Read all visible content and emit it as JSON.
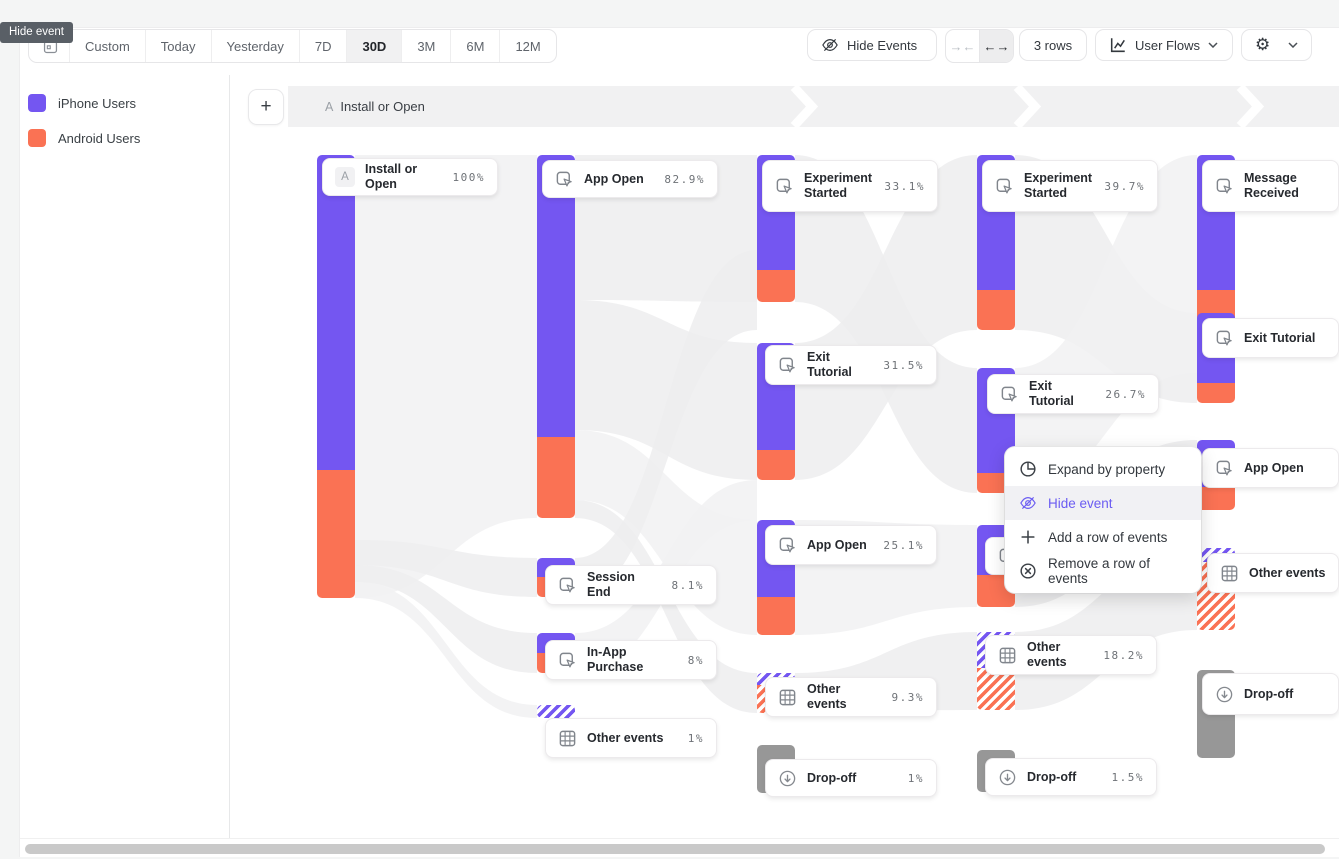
{
  "tooltip": {
    "label": "Hide event"
  },
  "toolbar": {
    "date_ranges": [
      "Custom",
      "Today",
      "Yesterday",
      "7D",
      "30D",
      "3M",
      "6M",
      "12M"
    ],
    "selected_range": "30D",
    "hide_events_label": "Hide Events",
    "collapse_glyph": "→←",
    "expand_glyph": "←→",
    "rows_label": "3 rows",
    "view_label": "User Flows",
    "gear_glyph": "⚙"
  },
  "legend": {
    "items": [
      {
        "label": "iPhone Users",
        "color": "#7456f1"
      },
      {
        "label": "Android Users",
        "color": "#fa7254"
      }
    ]
  },
  "breadcrumb": {
    "badge": "A",
    "label": "Install or Open"
  },
  "context_menu": {
    "items": [
      {
        "label": "Expand by property",
        "icon": "expand-by-property-icon",
        "active": false
      },
      {
        "label": "Hide event",
        "icon": "hide-event-icon",
        "active": true
      },
      {
        "label": "Add a row of events",
        "icon": "plus-icon",
        "active": false
      },
      {
        "label": "Remove a row of events",
        "icon": "remove-icon",
        "active": false
      }
    ]
  },
  "chart_data": {
    "type": "sankey",
    "title": "User Flows",
    "legend_entries": [
      "iPhone Users",
      "Android Users"
    ],
    "colors": {
      "iphone": "#7456f1",
      "android": "#fa7254",
      "dropoff": "#979797"
    },
    "columns": [
      {
        "nodes": [
          {
            "label": "Install or Open",
            "badge": "A",
            "value_pct": 100,
            "pct_label": "100%",
            "kind": "event"
          }
        ]
      },
      {
        "nodes": [
          {
            "label": "App Open",
            "value_pct": 82.9,
            "pct_label": "82.9%",
            "kind": "event"
          },
          {
            "label": "Session End",
            "value_pct": 8.1,
            "pct_label": "8.1%",
            "kind": "event"
          },
          {
            "label": "In-App Purchase",
            "value_pct": 8,
            "pct_label": "8%",
            "kind": "event"
          },
          {
            "label": "Other events",
            "value_pct": 1,
            "pct_label": "1%",
            "kind": "other"
          }
        ]
      },
      {
        "nodes": [
          {
            "label": "Experiment Started",
            "value_pct": 33.1,
            "pct_label": "33.1%",
            "kind": "event"
          },
          {
            "label": "Exit Tutorial",
            "value_pct": 31.5,
            "pct_label": "31.5%",
            "kind": "event"
          },
          {
            "label": "App Open",
            "value_pct": 25.1,
            "pct_label": "25.1%",
            "kind": "event"
          },
          {
            "label": "Other events",
            "value_pct": 9.3,
            "pct_label": "9.3%",
            "kind": "other"
          },
          {
            "label": "Drop-off",
            "value_pct": 1,
            "pct_label": "1%",
            "kind": "dropoff"
          }
        ]
      },
      {
        "nodes": [
          {
            "label": "Experiment Started",
            "value_pct": 39.7,
            "pct_label": "39.7%",
            "kind": "event"
          },
          {
            "label": "Exit Tutorial",
            "value_pct": 26.7,
            "pct_label": "26.7%",
            "kind": "event"
          },
          {
            "label": "",
            "pct_label": "",
            "kind": "event"
          },
          {
            "label": "Other events",
            "value_pct": 18.2,
            "pct_label": "18.2%",
            "kind": "other"
          },
          {
            "label": "Drop-off",
            "value_pct": 1.5,
            "pct_label": "1.5%",
            "kind": "dropoff"
          }
        ]
      },
      {
        "nodes": [
          {
            "label": "Message Received",
            "kind": "event"
          },
          {
            "label": "Exit Tutorial",
            "kind": "event"
          },
          {
            "label": "App Open",
            "kind": "event"
          },
          {
            "label": "Other events",
            "kind": "other"
          },
          {
            "label": "Drop-off",
            "kind": "dropoff"
          }
        ]
      }
    ]
  }
}
